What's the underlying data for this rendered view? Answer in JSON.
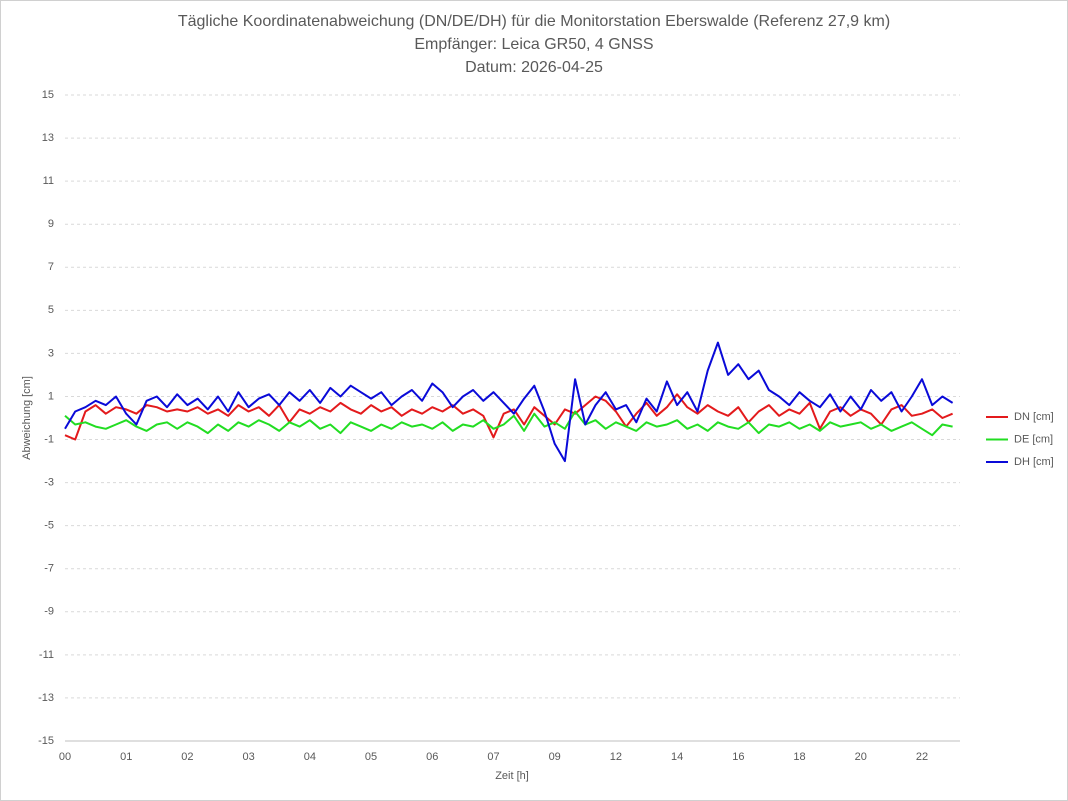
{
  "chart_data": {
    "type": "line",
    "title": "Tägliche Koordinatenabweichung (DN/DE/DH) für die Monitorstation Eberswalde (Referenz 27,9 km)",
    "subtitle": [
      "Empfänger: Leica GR50, 4 GNSS",
      "Datum: 2026-04-25"
    ],
    "x_label": "Zeit [h]",
    "y_label": "Abweichung [cm]",
    "categories": [
      "00",
      null,
      null,
      null,
      null,
      null,
      "01",
      null,
      null,
      null,
      null,
      null,
      "02",
      null,
      null,
      null,
      null,
      null,
      "03",
      null,
      null,
      null,
      null,
      null,
      "04",
      null,
      null,
      null,
      null,
      null,
      "05",
      null,
      null,
      null,
      null,
      null,
      "06",
      null,
      null,
      null,
      null,
      null,
      "07",
      null,
      null,
      null,
      null,
      null,
      "09",
      null,
      null,
      null,
      null,
      null,
      "12",
      null,
      null,
      null,
      null,
      null,
      "14",
      null,
      null,
      null,
      null,
      null,
      "16",
      null,
      null,
      null,
      null,
      null,
      "18",
      null,
      null,
      null,
      null,
      null,
      "20",
      null,
      null,
      null,
      null,
      null,
      "22",
      null,
      null,
      null
    ],
    "series": [
      {
        "name": "DN [cm]",
        "color": "#e31a1c",
        "values": [
          -0.8,
          -1.0,
          0.3,
          0.6,
          0.2,
          0.5,
          0.4,
          0.2,
          0.6,
          0.5,
          0.3,
          0.4,
          0.3,
          0.5,
          0.2,
          0.4,
          0.1,
          0.6,
          0.3,
          0.5,
          0.1,
          0.6,
          -0.2,
          0.4,
          0.2,
          0.5,
          0.3,
          0.7,
          0.4,
          0.2,
          0.6,
          0.3,
          0.5,
          0.1,
          0.4,
          0.2,
          0.5,
          0.3,
          0.6,
          0.2,
          0.4,
          0.1,
          -0.9,
          0.2,
          0.4,
          -0.3,
          0.5,
          0.1,
          -0.3,
          0.4,
          0.2,
          0.6,
          1.0,
          0.8,
          0.3,
          -0.4,
          0.2,
          0.7,
          0.1,
          0.5,
          1.1,
          0.5,
          0.2,
          0.6,
          0.3,
          0.1,
          0.5,
          -0.2,
          0.3,
          0.6,
          0.1,
          0.4,
          0.2,
          0.7,
          -0.5,
          0.3,
          0.5,
          0.1,
          0.4,
          0.2,
          -0.3,
          0.4,
          0.6,
          0.1,
          0.2,
          0.4,
          0.0,
          0.2
        ]
      },
      {
        "name": "DE [cm]",
        "color": "#22dd22",
        "values": [
          0.1,
          -0.3,
          -0.2,
          -0.4,
          -0.5,
          -0.3,
          -0.1,
          -0.4,
          -0.6,
          -0.3,
          -0.2,
          -0.5,
          -0.2,
          -0.4,
          -0.7,
          -0.3,
          -0.6,
          -0.2,
          -0.4,
          -0.1,
          -0.3,
          -0.6,
          -0.2,
          -0.4,
          -0.1,
          -0.5,
          -0.3,
          -0.7,
          -0.2,
          -0.4,
          -0.6,
          -0.3,
          -0.5,
          -0.2,
          -0.4,
          -0.3,
          -0.5,
          -0.2,
          -0.6,
          -0.3,
          -0.4,
          -0.1,
          -0.5,
          -0.3,
          0.1,
          -0.6,
          0.2,
          -0.4,
          -0.2,
          -0.5,
          0.3,
          -0.3,
          -0.1,
          -0.5,
          -0.2,
          -0.4,
          -0.6,
          -0.2,
          -0.4,
          -0.3,
          -0.1,
          -0.5,
          -0.3,
          -0.6,
          -0.2,
          -0.4,
          -0.5,
          -0.2,
          -0.7,
          -0.3,
          -0.4,
          -0.2,
          -0.5,
          -0.3,
          -0.6,
          -0.2,
          -0.4,
          -0.3,
          -0.2,
          -0.5,
          -0.3,
          -0.6,
          -0.4,
          -0.2,
          -0.5,
          -0.8,
          -0.3,
          -0.4
        ]
      },
      {
        "name": "DH [cm]",
        "color": "#0a0ad8",
        "values": [
          -0.5,
          0.3,
          0.5,
          0.8,
          0.6,
          1.0,
          0.2,
          -0.3,
          0.8,
          1.0,
          0.5,
          1.1,
          0.6,
          0.9,
          0.4,
          1.0,
          0.3,
          1.2,
          0.5,
          0.9,
          1.1,
          0.6,
          1.2,
          0.8,
          1.3,
          0.7,
          1.4,
          1.0,
          1.5,
          1.2,
          0.9,
          1.2,
          0.6,
          1.0,
          1.3,
          0.8,
          1.6,
          1.2,
          0.5,
          1.0,
          1.3,
          0.8,
          1.2,
          0.7,
          0.2,
          0.9,
          1.5,
          0.3,
          -1.2,
          -2.0,
          1.8,
          -0.3,
          0.6,
          1.2,
          0.4,
          0.6,
          -0.2,
          0.9,
          0.3,
          1.7,
          0.6,
          1.2,
          0.3,
          2.2,
          3.5,
          2.0,
          2.5,
          1.8,
          2.2,
          1.3,
          1.0,
          0.6,
          1.2,
          0.8,
          0.5,
          1.1,
          0.3,
          1.0,
          0.4,
          1.3,
          0.8,
          1.2,
          0.3,
          1.0,
          1.8,
          0.6,
          1.0,
          0.7
        ]
      }
    ],
    "ylim": [
      -15,
      15
    ],
    "yticks": [
      -15,
      -13,
      -11,
      -9,
      -7,
      -5,
      -3,
      -1,
      1,
      3,
      5,
      7,
      9,
      11,
      13,
      15
    ],
    "grid": true,
    "legend": "right"
  }
}
